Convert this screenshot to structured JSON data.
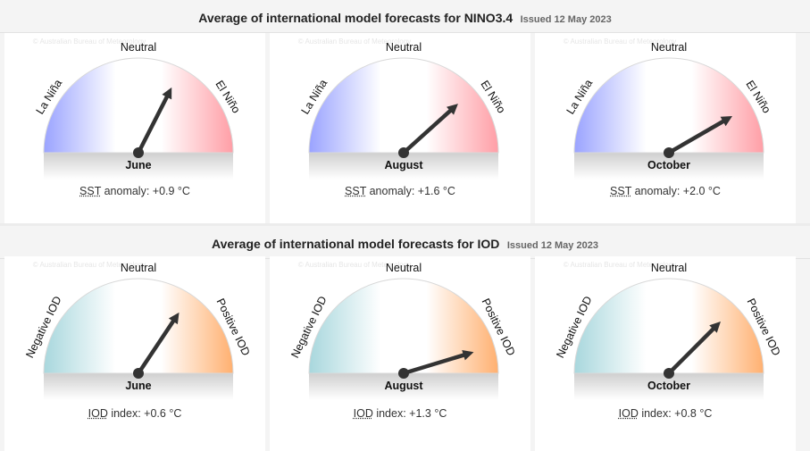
{
  "colors": {
    "lanina": "#9aa3ff",
    "elnino": "#ff9ea6",
    "negative_iod": "#a8d7dd",
    "positive_iod": "#ffb070",
    "needle": "#333333"
  },
  "panels": [
    {
      "id": "nino",
      "title": "Average of international model forecasts for NINO3.4",
      "issued": "Issued 12 May 2023",
      "watermark": "© Australian Bureau of Meteorology",
      "labels": {
        "left": "La Niña",
        "top": "Neutral",
        "right": "El Niño"
      },
      "caption_abbr": "SST",
      "caption_text": "anomaly:",
      "gradient": "nino"
    },
    {
      "id": "iod",
      "title": "Average of international model forecasts for IOD",
      "issued": "Issued 12 May 2023",
      "watermark": "© Australian Bureau of Meteorology",
      "labels": {
        "left": "Negative IOD",
        "top": "Neutral",
        "right": "Positive IOD"
      },
      "caption_abbr": "IOD",
      "caption_text": "index:",
      "gradient": "iod"
    }
  ],
  "chart_data": [
    {
      "type": "gauge",
      "title": "Average of international model forecasts for NINO3.4",
      "subtitle": "Issued 12 May 2023",
      "zones": [
        "La Niña",
        "Neutral",
        "El Niño"
      ],
      "metric": "SST anomaly",
      "unit": "°C",
      "categories": [
        "June",
        "August",
        "October"
      ],
      "values": [
        0.9,
        1.6,
        2.0
      ],
      "value_labels": [
        "+0.9 °C",
        "+1.6 °C",
        "+2.0 °C"
      ],
      "range": [
        -3,
        3
      ]
    },
    {
      "type": "gauge",
      "title": "Average of international model forecasts for IOD",
      "subtitle": "Issued 12 May 2023",
      "zones": [
        "Negative IOD",
        "Neutral",
        "Positive IOD"
      ],
      "metric": "IOD index",
      "unit": "°C",
      "categories": [
        "June",
        "August",
        "October"
      ],
      "values": [
        0.6,
        1.3,
        0.8
      ],
      "value_labels": [
        "+0.6 °C",
        "+1.3 °C",
        "+0.8 °C"
      ],
      "range": [
        -1.6,
        1.6
      ]
    }
  ]
}
